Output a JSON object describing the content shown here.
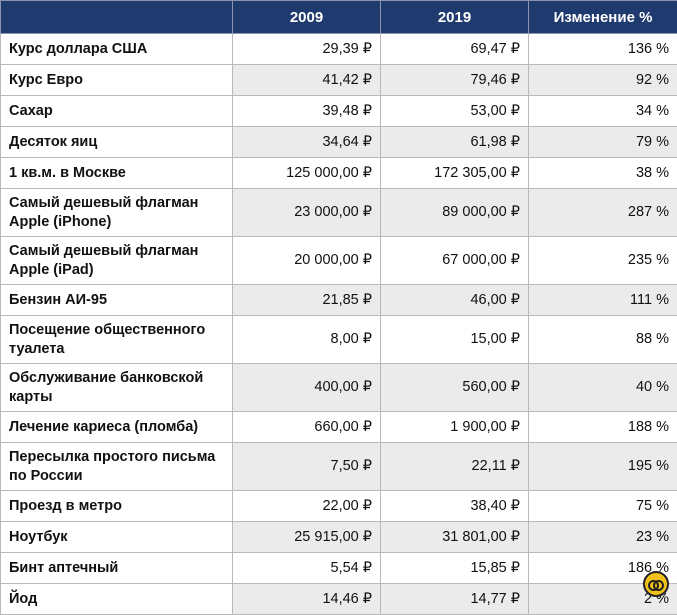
{
  "table": {
    "header": [
      "2009",
      "2019",
      "Изменение %"
    ],
    "rows": [
      [
        "Курс доллара США",
        "29,39 ₽",
        "69,47 ₽",
        "136 %"
      ],
      [
        "Курс Евро",
        "41,42 ₽",
        "79,46 ₽",
        "92 %"
      ],
      [
        "Сахар",
        "39,48 ₽",
        "53,00 ₽",
        "34 %"
      ],
      [
        "Десяток яиц",
        "34,64 ₽",
        "61,98 ₽",
        "79 %"
      ],
      [
        "1 кв.м. в Москве",
        "125 000,00 ₽",
        "172 305,00 ₽",
        "38 %"
      ],
      [
        "Самый дешевый флагман Apple (iPhone)",
        "23 000,00 ₽",
        "89 000,00 ₽",
        "287 %"
      ],
      [
        "Самый дешевый флагман Apple (iPad)",
        "20 000,00 ₽",
        "67 000,00 ₽",
        "235 %"
      ],
      [
        "Бензин АИ-95",
        "21,85 ₽",
        "46,00 ₽",
        "111 %"
      ],
      [
        "Посещение общественного туалета",
        "8,00 ₽",
        "15,00 ₽",
        "88 %"
      ],
      [
        "Обслуживание банковской карты",
        "400,00 ₽",
        "560,00 ₽",
        "40 %"
      ],
      [
        "Лечение кариеса (пломба)",
        "660,00 ₽",
        "1 900,00 ₽",
        "188 %"
      ],
      [
        "Пересылка простого письма по России",
        "7,50 ₽",
        "22,11 ₽",
        "195 %"
      ],
      [
        "Проезд в метро",
        "22,00 ₽",
        "38,40 ₽",
        "75 %"
      ],
      [
        "Ноутбук",
        "25 915,00 ₽",
        "31 801,00 ₽",
        "23 %"
      ],
      [
        "Бинт аптечный",
        "5,54 ₽",
        "15,85 ₽",
        "186 %"
      ],
      [
        "Йод",
        "14,46 ₽",
        "14,77 ₽",
        "2 %"
      ]
    ]
  }
}
